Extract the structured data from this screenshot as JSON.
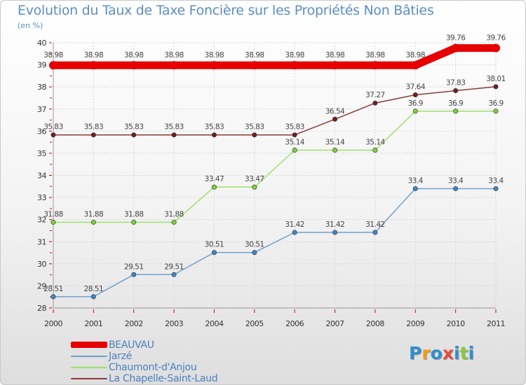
{
  "title": "Evolution du Taux de Taxe Foncière sur les Propriétés Non Bâties",
  "subtitle": "(en %)",
  "logo": {
    "letters": [
      "P",
      "r",
      "o",
      "x",
      "i",
      "t",
      "i"
    ],
    "colors": [
      "#2f8fd0",
      "#f39c12",
      "#2f8fd0",
      "#e74c3c",
      "#2f8fd0",
      "#8dc63f",
      "#2f8fd0"
    ]
  },
  "chart_data": {
    "type": "line",
    "title": "Evolution du Taux de Taxe Foncière sur les Propriétés Non Bâties",
    "ylabel": "(en %)",
    "xlabel": "",
    "ylim": [
      28,
      40
    ],
    "yticks": [
      28,
      29,
      30,
      31,
      32,
      33,
      34,
      35,
      36,
      37,
      38,
      39,
      40
    ],
    "categories": [
      "2000",
      "2001",
      "2002",
      "2003",
      "2004",
      "2005",
      "2006",
      "2007",
      "2008",
      "2009",
      "2010",
      "2011"
    ],
    "series": [
      {
        "name": "BEAUVAU",
        "color": "#e60000",
        "thick": true,
        "values": [
          38.98,
          38.98,
          38.98,
          38.98,
          38.98,
          38.98,
          38.98,
          38.98,
          38.98,
          38.98,
          39.76,
          39.76
        ],
        "labels": [
          "38.98",
          "38.98",
          "38.98",
          "38.98",
          "38.98",
          "38.98",
          "38.98",
          "38.98",
          "38.98",
          "38.98",
          "39.76",
          "39.76"
        ]
      },
      {
        "name": "Jarzé",
        "color": "#6fa1cf",
        "marker": "#3f86c4",
        "thick": false,
        "values": [
          28.51,
          28.51,
          29.51,
          29.51,
          30.51,
          30.51,
          31.42,
          31.42,
          31.42,
          33.4,
          33.4,
          33.4
        ],
        "labels": [
          "28.51",
          "28.51",
          "29.51",
          "29.51",
          "30.51",
          "30.51",
          "31.42",
          "31.42",
          "31.42",
          "33.4",
          "33.4",
          "33.4"
        ]
      },
      {
        "name": "Chaumont-d'Anjou",
        "color": "#9ee06a",
        "marker": "#7fcf3a",
        "thick": false,
        "values": [
          31.88,
          31.88,
          31.88,
          31.88,
          33.47,
          33.47,
          35.14,
          35.14,
          35.14,
          36.9,
          36.9,
          36.9
        ],
        "labels": [
          "31.88",
          "31.88",
          "31.88",
          "31.88",
          "33.47",
          "33.47",
          "35.14",
          "35.14",
          "35.14",
          "36.9",
          "36.9",
          "36.9"
        ]
      },
      {
        "name": "La Chapelle-Saint-Laud",
        "color": "#8b3a3a",
        "marker": "#6e1f1f",
        "thick": false,
        "values": [
          35.83,
          35.83,
          35.83,
          35.83,
          35.83,
          35.83,
          35.83,
          36.54,
          37.27,
          37.64,
          37.83,
          38.01
        ],
        "labels": [
          "35.83",
          "35.83",
          "35.83",
          "35.83",
          "35.83",
          "35.83",
          "35.83",
          "36.54",
          "37.27",
          "37.64",
          "37.83",
          "38.01"
        ]
      }
    ]
  }
}
